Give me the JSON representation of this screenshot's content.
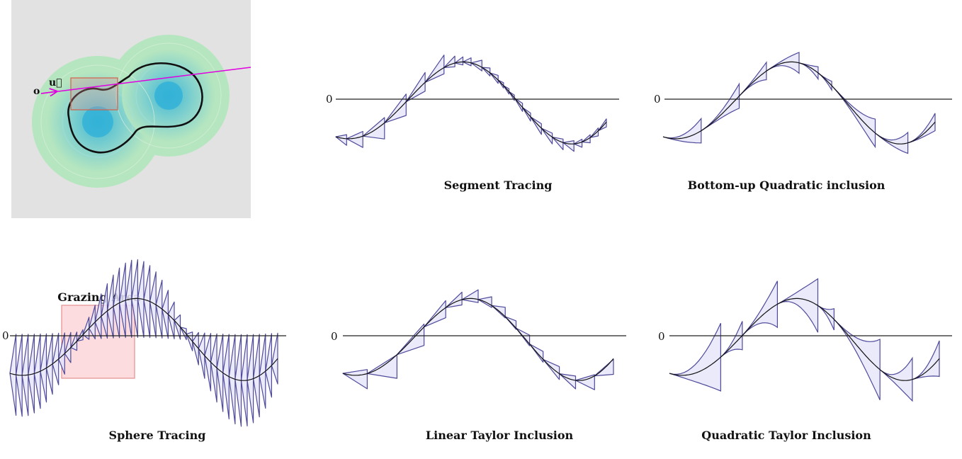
{
  "colors": {
    "outline": "#4f4a9a",
    "fill": "#e6e6fa",
    "curve": "#111111",
    "axis": "#222222",
    "ray": "#e000e0",
    "panel_bg": "#e2e2e2",
    "field_outer": "#b6e6bf",
    "field_inner": "#33b3d6",
    "grazing_fill": "#fbd6d8",
    "grazing_stroke": "#e49093",
    "bbox_stroke": "#d2604b"
  },
  "inset": {
    "origin_label": "o",
    "direction_label": "u⃗"
  },
  "plots": {
    "sphere": {
      "title": "Sphere Tracing",
      "zero": "0",
      "grazing_label": "Grazing Area"
    },
    "segment": {
      "title": "Segment Tracing",
      "zero": "0"
    },
    "bottom_up": {
      "title": "Bottom-up Quadratic inclusion",
      "zero": "0"
    },
    "linear": {
      "title": "Linear Taylor Inclusion",
      "zero": "0"
    },
    "quadratic": {
      "title": "Quadratic Taylor Inclusion",
      "zero": "0"
    }
  }
}
